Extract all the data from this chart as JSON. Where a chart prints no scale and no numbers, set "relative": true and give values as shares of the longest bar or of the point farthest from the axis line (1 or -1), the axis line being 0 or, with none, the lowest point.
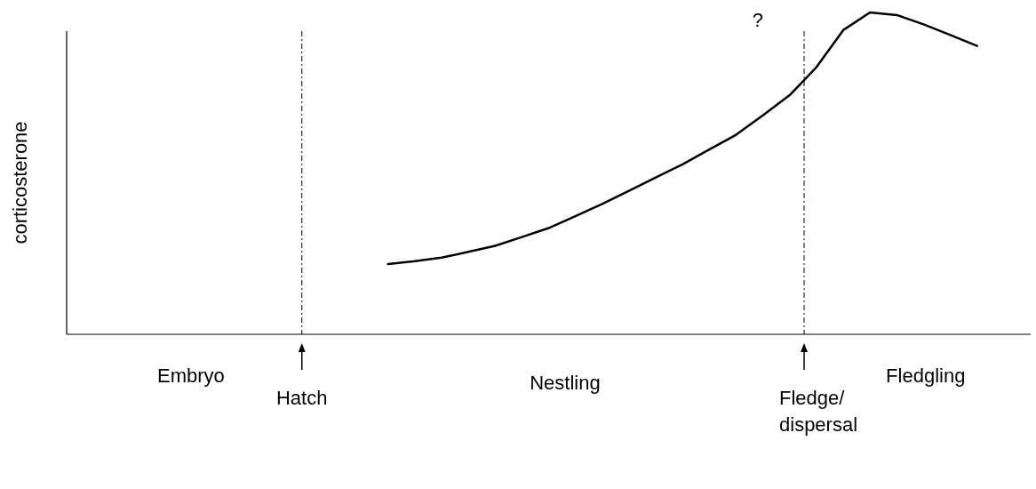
{
  "chart_data": {
    "type": "line",
    "relative": true,
    "ylabel": "corticosterone",
    "line_style": "solid",
    "categories": [
      null,
      null,
      null,
      null,
      null,
      null,
      null,
      null,
      null,
      null,
      null,
      null,
      null,
      null,
      null,
      null,
      null,
      null,
      null,
      null,
      null,
      null,
      null,
      null,
      null,
      null,
      null,
      null,
      null,
      null,
      null,
      null,
      null,
      null,
      null,
      null,
      null
    ],
    "series": [
      {
        "color": "#000000",
        "values": [
          null,
          null,
          null,
          null,
          null,
          null,
          null,
          null,
          null,
          null,
          null,
          null,
          0.218,
          0.227,
          0.238,
          0.256,
          0.275,
          0.302,
          0.33,
          0.367,
          0.405,
          0.446,
          0.487,
          0.528,
          0.574,
          0.62,
          0.68,
          0.743,
          0.83,
          0.945,
          1.0,
          0.992,
          0.963,
          0.93,
          0.896,
          null,
          null
        ]
      }
    ],
    "ref_lines": [
      {
        "axis": "x",
        "label": "Hatch",
        "color": "#000000",
        "line_style": "dashdot"
      },
      {
        "axis": "x",
        "label": "Fledge/dispersal",
        "color": "#000000",
        "line_style": "dashdot"
      }
    ],
    "annotations": [
      "Embryo",
      "Nestling",
      "Fledgling",
      "?"
    ]
  }
}
